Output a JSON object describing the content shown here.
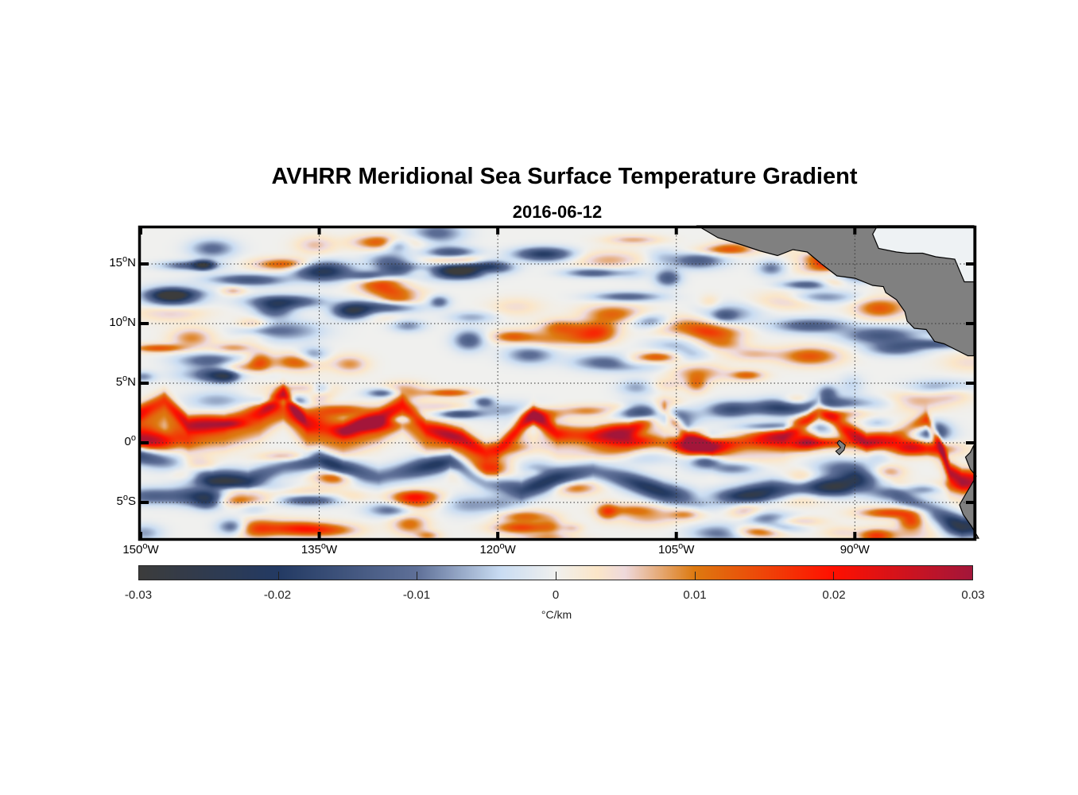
{
  "chart_data": {
    "type": "heatmap",
    "title": "AVHRR Meridional Sea Surface Temperature Gradient",
    "subtitle": "2016-06-12",
    "xlabel": "",
    "ylabel": "",
    "xlim": [
      -150,
      -80
    ],
    "ylim": [
      -8,
      18
    ],
    "grid": true,
    "x_ticks": [
      {
        "value": -150,
        "label": "150",
        "suffix": "W"
      },
      {
        "value": -135,
        "label": "135",
        "suffix": "W"
      },
      {
        "value": -120,
        "label": "120",
        "suffix": "W"
      },
      {
        "value": -105,
        "label": "105",
        "suffix": "W"
      },
      {
        "value": -90,
        "label": "90",
        "suffix": "W"
      }
    ],
    "y_ticks": [
      {
        "value": 15,
        "label": "15",
        "suffix": "N"
      },
      {
        "value": 10,
        "label": "10",
        "suffix": "N"
      },
      {
        "value": 5,
        "label": "5",
        "suffix": "N"
      },
      {
        "value": 0,
        "label": "0",
        "suffix": ""
      },
      {
        "value": -5,
        "label": "5",
        "suffix": "S"
      }
    ],
    "degree_symbol": "o",
    "colorbar": {
      "range": [
        -0.03,
        0.03
      ],
      "ticks": [
        "-0.03",
        "-0.02",
        "-0.01",
        "0",
        "0.01",
        "0.02",
        "0.03"
      ],
      "tick_values": [
        -0.03,
        -0.02,
        -0.01,
        0,
        0.01,
        0.02,
        0.03
      ],
      "unit": "°C/km",
      "colors": [
        {
          "value": -0.03,
          "color": "#3c3c3c"
        },
        {
          "value": -0.02,
          "color": "#233a63"
        },
        {
          "value": -0.01,
          "color": "#5f7098"
        },
        {
          "value": -0.004,
          "color": "#c9dcf2"
        },
        {
          "value": 0,
          "color": "#f0f0ee"
        },
        {
          "value": 0.003,
          "color": "#fbe6c8"
        },
        {
          "value": 0.005,
          "color": "#eed9dc"
        },
        {
          "value": 0.01,
          "color": "#dd7a10"
        },
        {
          "value": 0.02,
          "color": "#ff1000"
        },
        {
          "value": 0.03,
          "color": "#a3163a"
        }
      ]
    },
    "land_color": "#808080",
    "equatorial_front_north": {
      "description_value": 0.025,
      "points": [
        [
          -150,
          2.5
        ],
        [
          -148,
          3.6
        ],
        [
          -146,
          1.5
        ],
        [
          -143,
          1.6
        ],
        [
          -140,
          2.5
        ],
        [
          -138,
          4.0
        ],
        [
          -136,
          1.5
        ],
        [
          -133,
          1.0
        ],
        [
          -130,
          2.0
        ],
        [
          -128,
          3.2
        ],
        [
          -126,
          1.2
        ],
        [
          -123,
          0.4
        ],
        [
          -121,
          -0.8
        ],
        [
          -120,
          -0.6
        ],
        [
          -118,
          1.5
        ],
        [
          -117,
          2.3
        ],
        [
          -115,
          0.8
        ],
        [
          -112,
          0.6
        ],
        [
          -109,
          1.0
        ],
        [
          -106,
          2.6
        ],
        [
          -104,
          0.5
        ],
        [
          -102,
          -0.4
        ],
        [
          -99,
          0.2
        ],
        [
          -96,
          0.6
        ],
        [
          -94,
          1.8
        ],
        [
          -93,
          2.9
        ],
        [
          -91,
          1.2
        ],
        [
          -89,
          0.0
        ],
        [
          -87,
          0.3
        ],
        [
          -84,
          1.8
        ],
        [
          -83,
          0.2
        ],
        [
          -82,
          -2.5
        ],
        [
          -81,
          -3.0
        ]
      ]
    },
    "equatorial_front_south": {
      "description_value": -0.02,
      "points": [
        [
          -150,
          -1.0
        ],
        [
          -147,
          -1.8
        ],
        [
          -144,
          -3.0
        ],
        [
          -141,
          -3.2
        ],
        [
          -138,
          -2.0
        ],
        [
          -135,
          -1.3
        ],
        [
          -133,
          -2.2
        ],
        [
          -130,
          -2.9
        ],
        [
          -127,
          -2.2
        ],
        [
          -124,
          -1.5
        ],
        [
          -121,
          -3.2
        ],
        [
          -118,
          -4.0
        ],
        [
          -115,
          -3.0
        ],
        [
          -112,
          -2.3
        ],
        [
          -109,
          -3.2
        ],
        [
          -106,
          -4.2
        ],
        [
          -103,
          -4.8
        ],
        [
          -100,
          -4.5
        ],
        [
          -97,
          -4.0
        ],
        [
          -93,
          -4.0
        ],
        [
          -90,
          -3.3
        ],
        [
          -87,
          -4.0
        ],
        [
          -84,
          -5.5
        ],
        [
          -81,
          -7.0
        ]
      ]
    }
  }
}
